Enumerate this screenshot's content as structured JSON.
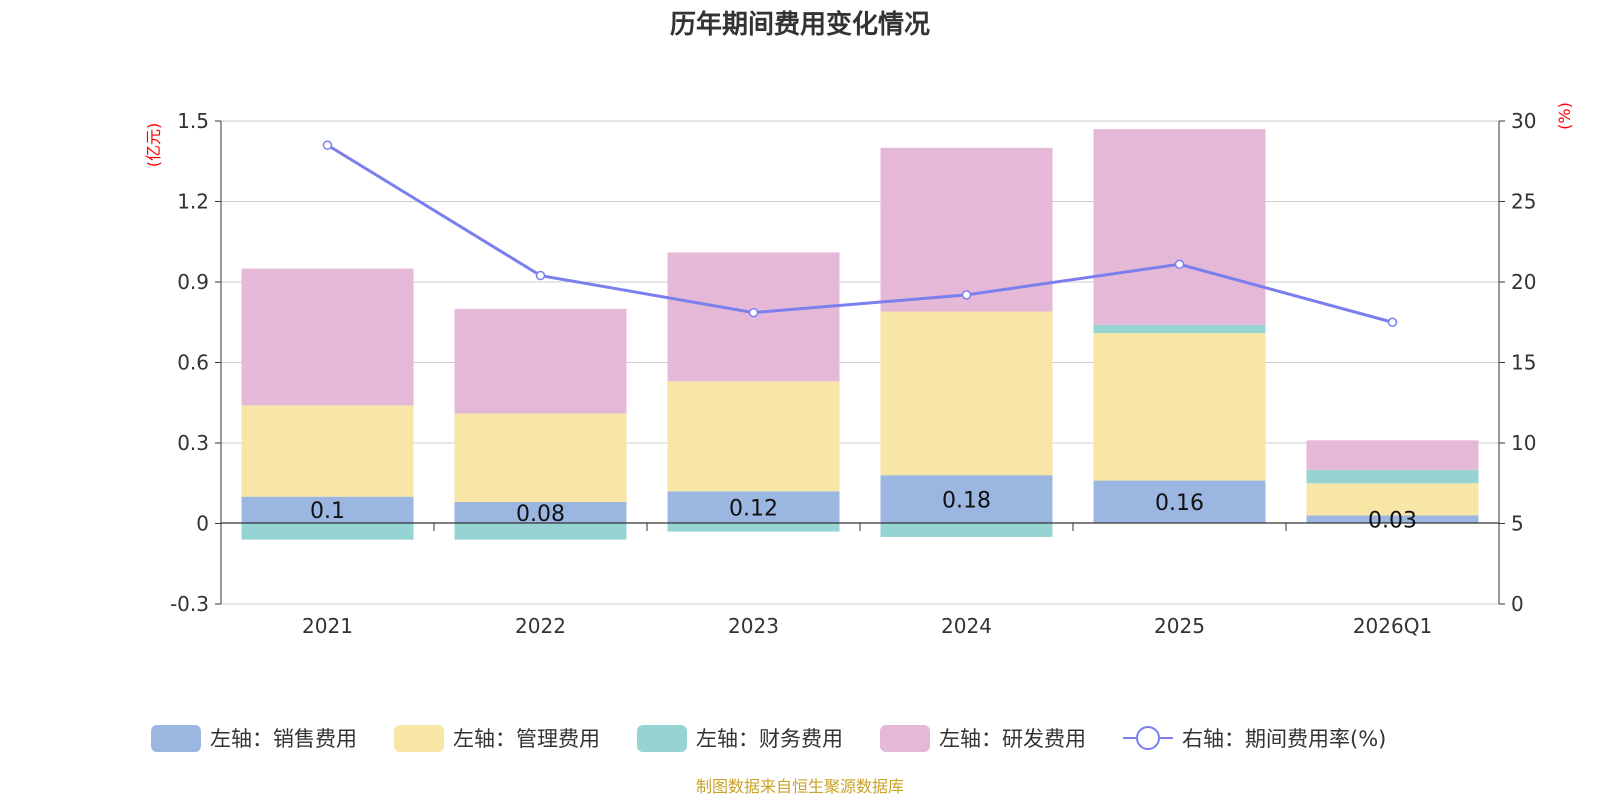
{
  "chart_data": {
    "type": "bar",
    "stacked": true,
    "title": "历年期间费用变化情况",
    "categories": [
      "2021",
      "2022",
      "2023",
      "2024",
      "2025",
      "2026Q1"
    ],
    "left_axis": {
      "unit": "(亿元)",
      "min": -0.3,
      "max": 1.5,
      "ticks": [
        "-0.3",
        "0",
        "0.3",
        "0.6",
        "0.9",
        "1.2",
        "1.5"
      ]
    },
    "right_axis": {
      "unit": "(%)",
      "min": 0,
      "max": 30,
      "ticks": [
        "0",
        "5",
        "10",
        "15",
        "20",
        "25",
        "30"
      ]
    },
    "series": [
      {
        "name": "左轴：销售费用",
        "color": "#9bb6e0",
        "values": [
          0.1,
          0.08,
          0.12,
          0.18,
          0.16,
          0.03
        ]
      },
      {
        "name": "左轴：管理费用",
        "color": "#f8e6a6",
        "values": [
          0.34,
          0.33,
          0.41,
          0.61,
          0.55,
          0.12
        ]
      },
      {
        "name": "左轴：财务费用",
        "color": "#96d3d3",
        "values": [
          -0.06,
          -0.06,
          -0.03,
          -0.05,
          0.03,
          0.05
        ]
      },
      {
        "name": "左轴：研发费用",
        "color": "#e6b8d8",
        "values": [
          0.51,
          0.39,
          0.48,
          0.61,
          0.73,
          0.11
        ]
      }
    ],
    "data_labels": [
      "0.1",
      "0.08",
      "0.12",
      "0.18",
      "0.16",
      "0.03"
    ],
    "line": {
      "name": "右轴：期间费用率(%)",
      "color": "#7b7fee",
      "values": [
        28.5,
        20.4,
        18.1,
        19.2,
        21.1,
        17.5
      ]
    },
    "legend_position": "bottom",
    "grid": true
  },
  "source": "制图数据来自恒生聚源数据库"
}
